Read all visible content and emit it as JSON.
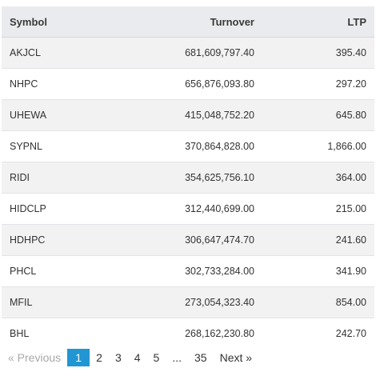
{
  "table": {
    "headers": {
      "symbol": "Symbol",
      "turnover": "Turnover",
      "ltp": "LTP"
    },
    "rows": [
      {
        "symbol": "AKJCL",
        "turnover": "681,609,797.40",
        "ltp": "395.40"
      },
      {
        "symbol": "NHPC",
        "turnover": "656,876,093.80",
        "ltp": "297.20"
      },
      {
        "symbol": "UHEWA",
        "turnover": "415,048,752.20",
        "ltp": "645.80"
      },
      {
        "symbol": "SYPNL",
        "turnover": "370,864,828.00",
        "ltp": "1,866.00"
      },
      {
        "symbol": "RIDI",
        "turnover": "354,625,756.10",
        "ltp": "364.00"
      },
      {
        "symbol": "HIDCLP",
        "turnover": "312,440,699.00",
        "ltp": "215.00"
      },
      {
        "symbol": "HDHPC",
        "turnover": "306,647,474.70",
        "ltp": "241.60"
      },
      {
        "symbol": "PHCL",
        "turnover": "302,733,284.00",
        "ltp": "341.90"
      },
      {
        "symbol": "MFIL",
        "turnover": "273,054,323.40",
        "ltp": "854.00"
      },
      {
        "symbol": "BHL",
        "turnover": "268,162,230.80",
        "ltp": "242.70"
      }
    ]
  },
  "pagination": {
    "previous_label": "« Previous",
    "pages": [
      "1",
      "2",
      "3",
      "4",
      "5"
    ],
    "ellipsis": "...",
    "last_page": "35",
    "next_label": "Next »",
    "current_page": "1"
  }
}
